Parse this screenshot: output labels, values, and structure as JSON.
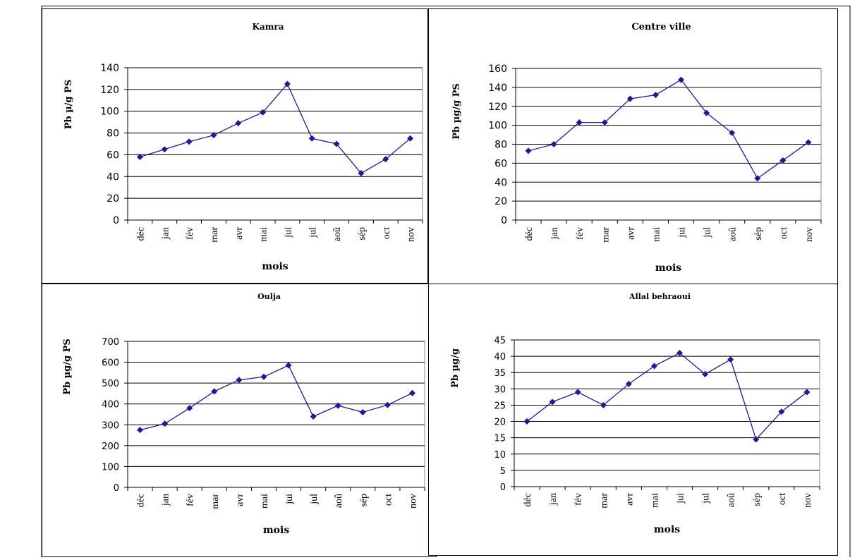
{
  "chart_data": [
    {
      "type": "line",
      "title": "Kamra",
      "xlabel": "mois",
      "ylabel": "Pb µ/g PS",
      "categories": [
        "déc",
        "jan",
        "fév",
        "mar",
        "avr",
        "mai",
        "jui",
        "jul",
        "aoû",
        "sép",
        "oct",
        "nov"
      ],
      "values": [
        58,
        65,
        72,
        78,
        89,
        99,
        125,
        75,
        70,
        43,
        56,
        75
      ],
      "ylim": [
        0,
        140
      ],
      "yticks": [
        0,
        20,
        40,
        60,
        80,
        100,
        120,
        140
      ],
      "grid": true,
      "color": "#1f1a8f"
    },
    {
      "type": "line",
      "title": "Centre ville",
      "xlabel": "mois",
      "ylabel": "Pb µg/g PS",
      "categories": [
        "déc",
        "jan",
        "fév",
        "mar",
        "avr",
        "mai",
        "jui",
        "jul",
        "aoû",
        "sép",
        "oct",
        "nov"
      ],
      "values": [
        73,
        80,
        103,
        103,
        128,
        132,
        148,
        113,
        92,
        44,
        63,
        82
      ],
      "ylim": [
        0,
        160
      ],
      "yticks": [
        0,
        20,
        40,
        60,
        80,
        100,
        120,
        140,
        160
      ],
      "grid": true,
      "color": "#1f1a8f"
    },
    {
      "type": "line",
      "title": "Oulja",
      "xlabel": "mois",
      "ylabel": "Pb µg/g PS",
      "categories": [
        "déc",
        "jan",
        "fév",
        "mar",
        "avr",
        "mai",
        "jui",
        "jul",
        "aoû",
        "sép",
        "oct",
        "nov"
      ],
      "values": [
        275,
        305,
        380,
        460,
        515,
        530,
        585,
        340,
        392,
        360,
        395,
        452
      ],
      "ylim": [
        0,
        700
      ],
      "yticks": [
        0,
        100,
        200,
        300,
        400,
        500,
        600,
        700
      ],
      "grid": true,
      "color": "#1f1a8f"
    },
    {
      "type": "line",
      "title": "Allal behraoui",
      "xlabel": "mois",
      "ylabel": "Pb µg/g",
      "categories": [
        "déc",
        "jan",
        "fév",
        "mar",
        "avr",
        "mai",
        "jui",
        "jul",
        "aoû",
        "sép",
        "oct",
        "nov"
      ],
      "values": [
        20,
        26,
        29,
        25,
        31.5,
        37,
        41,
        34.5,
        39,
        14.5,
        23,
        29
      ],
      "ylim": [
        0,
        45
      ],
      "yticks": [
        0,
        5,
        10,
        15,
        20,
        25,
        30,
        35,
        40,
        45
      ],
      "grid": true,
      "color": "#1f1a8f"
    }
  ]
}
